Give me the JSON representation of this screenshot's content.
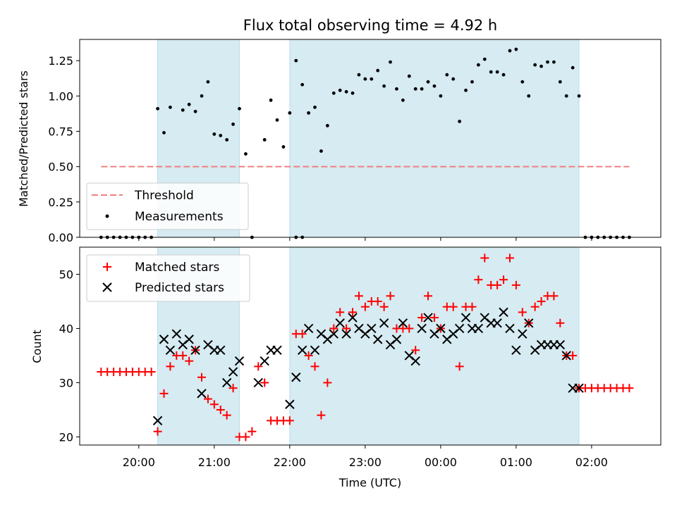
{
  "chart_data": [
    {
      "type": "scatter",
      "title": "Flux total observing time = 4.92 h",
      "xlabel": "",
      "ylabel": "Matched/Predicted stars",
      "ylim": [
        0,
        1.4
      ],
      "xlim": [
        "19:13",
        "02:55"
      ],
      "y_ticks": [
        "0.00",
        "0.25",
        "0.50",
        "0.75",
        "1.00",
        "1.25"
      ],
      "x_tick_labels_shown": false,
      "legend": "lower-left",
      "shaded_intervals": [
        [
          "20:15",
          "21:20"
        ],
        [
          "22:00",
          "01:50"
        ]
      ],
      "threshold": {
        "name": "Threshold",
        "value": 0.5,
        "x_range": [
          "19:30",
          "02:30"
        ],
        "color": "#f08080"
      },
      "series": [
        {
          "name": "Measurements",
          "color": "#000000",
          "points": [
            [
              "19:30",
              0
            ],
            [
              "19:35",
              0
            ],
            [
              "19:40",
              0
            ],
            [
              "19:45",
              0
            ],
            [
              "19:50",
              0
            ],
            [
              "19:55",
              0
            ],
            [
              "20:00",
              0
            ],
            [
              "20:05",
              0
            ],
            [
              "20:10",
              0
            ],
            [
              "20:15",
              0.91
            ],
            [
              "20:20",
              0.74
            ],
            [
              "20:25",
              0.92
            ],
            [
              "20:35",
              0.9
            ],
            [
              "20:40",
              0.94
            ],
            [
              "20:45",
              0.89
            ],
            [
              "20:50",
              1.0
            ],
            [
              "20:55",
              1.1
            ],
            [
              "21:00",
              0.73
            ],
            [
              "21:05",
              0.72
            ],
            [
              "21:10",
              0.69
            ],
            [
              "21:15",
              0.8
            ],
            [
              "21:20",
              0.91
            ],
            [
              "21:25",
              0.59
            ],
            [
              "21:30",
              0
            ],
            [
              "21:40",
              0.69
            ],
            [
              "21:45",
              0.97
            ],
            [
              "21:50",
              0.83
            ],
            [
              "21:55",
              0.64
            ],
            [
              "22:05",
              0
            ],
            [
              "22:10",
              0
            ],
            [
              "22:00",
              0.88
            ],
            [
              "22:05",
              1.25
            ],
            [
              "22:10",
              1.08
            ],
            [
              "22:15",
              0.88
            ],
            [
              "22:20",
              0.92
            ],
            [
              "22:25",
              0.61
            ],
            [
              "22:30",
              0.79
            ],
            [
              "22:35",
              1.02
            ],
            [
              "22:40",
              1.04
            ],
            [
              "22:45",
              1.03
            ],
            [
              "22:50",
              1.02
            ],
            [
              "22:55",
              1.15
            ],
            [
              "23:00",
              1.12
            ],
            [
              "23:05",
              1.12
            ],
            [
              "23:10",
              1.18
            ],
            [
              "23:15",
              1.07
            ],
            [
              "23:20",
              1.24
            ],
            [
              "23:25",
              1.05
            ],
            [
              "23:30",
              0.97
            ],
            [
              "23:35",
              1.14
            ],
            [
              "23:40",
              1.05
            ],
            [
              "23:45",
              1.05
            ],
            [
              "23:50",
              1.1
            ],
            [
              "23:55",
              1.07
            ],
            [
              "00:00",
              1.0
            ],
            [
              "00:05",
              1.15
            ],
            [
              "00:10",
              1.12
            ],
            [
              "00:15",
              0.82
            ],
            [
              "00:20",
              1.04
            ],
            [
              "00:25",
              1.1
            ],
            [
              "00:30",
              1.22
            ],
            [
              "00:35",
              1.26
            ],
            [
              "00:40",
              1.17
            ],
            [
              "00:45",
              1.17
            ],
            [
              "00:50",
              1.15
            ],
            [
              "00:55",
              1.32
            ],
            [
              "01:00",
              1.33
            ],
            [
              "01:05",
              1.1
            ],
            [
              "01:10",
              1.0
            ],
            [
              "01:15",
              1.22
            ],
            [
              "01:20",
              1.21
            ],
            [
              "01:25",
              1.24
            ],
            [
              "01:30",
              1.24
            ],
            [
              "01:35",
              1.1
            ],
            [
              "01:40",
              1.0
            ],
            [
              "01:45",
              1.2
            ],
            [
              "01:50",
              1.0
            ],
            [
              "01:55",
              0
            ],
            [
              "02:00",
              0
            ],
            [
              "02:05",
              0
            ],
            [
              "02:10",
              0
            ],
            [
              "02:15",
              0
            ],
            [
              "02:20",
              0
            ],
            [
              "02:25",
              0
            ],
            [
              "02:30",
              0
            ]
          ]
        }
      ]
    },
    {
      "type": "scatter",
      "title": "",
      "xlabel": "Time (UTC)",
      "ylabel": "Count",
      "ylim": [
        18.5,
        55
      ],
      "xlim": [
        "19:13",
        "02:55"
      ],
      "y_ticks": [
        "20",
        "30",
        "40",
        "50"
      ],
      "x_ticks": [
        "20:00",
        "21:00",
        "22:00",
        "23:00",
        "00:00",
        "01:00",
        "02:00"
      ],
      "legend": "top-left",
      "shaded_intervals": [
        [
          "20:15",
          "21:20"
        ],
        [
          "22:00",
          "01:50"
        ]
      ],
      "series": [
        {
          "name": "Matched stars",
          "marker": "plus",
          "color": "#ff0000",
          "points": [
            [
              "19:30",
              32
            ],
            [
              "19:35",
              32
            ],
            [
              "19:40",
              32
            ],
            [
              "19:45",
              32
            ],
            [
              "19:50",
              32
            ],
            [
              "19:55",
              32
            ],
            [
              "20:00",
              32
            ],
            [
              "20:05",
              32
            ],
            [
              "20:10",
              32
            ],
            [
              "20:15",
              21
            ],
            [
              "20:20",
              28
            ],
            [
              "20:25",
              33
            ],
            [
              "20:30",
              35
            ],
            [
              "20:35",
              35
            ],
            [
              "20:40",
              34
            ],
            [
              "20:45",
              36
            ],
            [
              "20:50",
              31
            ],
            [
              "20:55",
              27
            ],
            [
              "21:00",
              26
            ],
            [
              "21:05",
              25
            ],
            [
              "21:10",
              24
            ],
            [
              "21:15",
              29
            ],
            [
              "21:20",
              20
            ],
            [
              "21:25",
              20
            ],
            [
              "21:30",
              21
            ],
            [
              "21:35",
              33
            ],
            [
              "21:40",
              30
            ],
            [
              "21:45",
              23
            ],
            [
              "21:50",
              23
            ],
            [
              "21:55",
              23
            ],
            [
              "22:00",
              23
            ],
            [
              "22:05",
              39
            ],
            [
              "22:10",
              39
            ],
            [
              "22:15",
              35
            ],
            [
              "22:20",
              33
            ],
            [
              "22:25",
              24
            ],
            [
              "22:30",
              30
            ],
            [
              "22:35",
              40
            ],
            [
              "22:40",
              43
            ],
            [
              "22:45",
              40
            ],
            [
              "22:50",
              43
            ],
            [
              "22:55",
              46
            ],
            [
              "23:00",
              44
            ],
            [
              "23:05",
              45
            ],
            [
              "23:10",
              45
            ],
            [
              "23:15",
              44
            ],
            [
              "23:20",
              46
            ],
            [
              "23:25",
              40
            ],
            [
              "23:30",
              40
            ],
            [
              "23:35",
              40
            ],
            [
              "23:40",
              36
            ],
            [
              "23:45",
              42
            ],
            [
              "23:50",
              46
            ],
            [
              "23:55",
              42
            ],
            [
              "00:00",
              40
            ],
            [
              "00:05",
              44
            ],
            [
              "00:10",
              44
            ],
            [
              "00:15",
              33
            ],
            [
              "00:20",
              44
            ],
            [
              "00:25",
              44
            ],
            [
              "00:30",
              49
            ],
            [
              "00:35",
              53
            ],
            [
              "00:40",
              48
            ],
            [
              "00:45",
              48
            ],
            [
              "00:50",
              49
            ],
            [
              "00:55",
              53
            ],
            [
              "01:00",
              48
            ],
            [
              "01:05",
              43
            ],
            [
              "01:10",
              41
            ],
            [
              "01:15",
              44
            ],
            [
              "01:20",
              45
            ],
            [
              "01:25",
              46
            ],
            [
              "01:30",
              46
            ],
            [
              "01:35",
              41
            ],
            [
              "01:40",
              35
            ],
            [
              "01:45",
              35
            ],
            [
              "01:50",
              29
            ],
            [
              "01:55",
              29
            ],
            [
              "02:00",
              29
            ],
            [
              "02:05",
              29
            ],
            [
              "02:10",
              29
            ],
            [
              "02:15",
              29
            ],
            [
              "02:20",
              29
            ],
            [
              "02:25",
              29
            ],
            [
              "02:30",
              29
            ]
          ]
        },
        {
          "name": "Predicted stars",
          "marker": "x",
          "color": "#000000",
          "points": [
            [
              "20:15",
              23
            ],
            [
              "20:20",
              38
            ],
            [
              "20:25",
              36
            ],
            [
              "20:30",
              39
            ],
            [
              "20:35",
              37
            ],
            [
              "20:40",
              38
            ],
            [
              "20:45",
              36
            ],
            [
              "20:50",
              28
            ],
            [
              "20:55",
              37
            ],
            [
              "21:00",
              36
            ],
            [
              "21:05",
              36
            ],
            [
              "21:10",
              30
            ],
            [
              "21:15",
              32
            ],
            [
              "21:20",
              34
            ],
            [
              "21:35",
              30
            ],
            [
              "21:40",
              34
            ],
            [
              "21:45",
              36
            ],
            [
              "21:50",
              36
            ],
            [
              "22:00",
              26
            ],
            [
              "22:05",
              31
            ],
            [
              "22:10",
              36
            ],
            [
              "22:15",
              40
            ],
            [
              "22:20",
              36
            ],
            [
              "22:25",
              39
            ],
            [
              "22:30",
              38
            ],
            [
              "22:35",
              39
            ],
            [
              "22:40",
              41
            ],
            [
              "22:45",
              39
            ],
            [
              "22:50",
              42
            ],
            [
              "22:55",
              40
            ],
            [
              "23:00",
              39
            ],
            [
              "23:05",
              40
            ],
            [
              "23:10",
              38
            ],
            [
              "23:15",
              41
            ],
            [
              "23:20",
              37
            ],
            [
              "23:25",
              38
            ],
            [
              "23:30",
              41
            ],
            [
              "23:35",
              35
            ],
            [
              "23:40",
              34
            ],
            [
              "23:45",
              40
            ],
            [
              "23:50",
              42
            ],
            [
              "23:55",
              39
            ],
            [
              "00:00",
              40
            ],
            [
              "00:05",
              38
            ],
            [
              "00:10",
              39
            ],
            [
              "00:15",
              40
            ],
            [
              "00:20",
              42
            ],
            [
              "00:25",
              40
            ],
            [
              "00:30",
              40
            ],
            [
              "00:35",
              42
            ],
            [
              "00:40",
              41
            ],
            [
              "00:45",
              41
            ],
            [
              "00:50",
              43
            ],
            [
              "00:55",
              40
            ],
            [
              "01:00",
              36
            ],
            [
              "01:05",
              39
            ],
            [
              "01:10",
              41
            ],
            [
              "01:15",
              36
            ],
            [
              "01:20",
              37
            ],
            [
              "01:25",
              37
            ],
            [
              "01:30",
              37
            ],
            [
              "01:35",
              37
            ],
            [
              "01:40",
              35
            ],
            [
              "01:45",
              29
            ],
            [
              "01:50",
              29
            ]
          ]
        }
      ]
    }
  ]
}
